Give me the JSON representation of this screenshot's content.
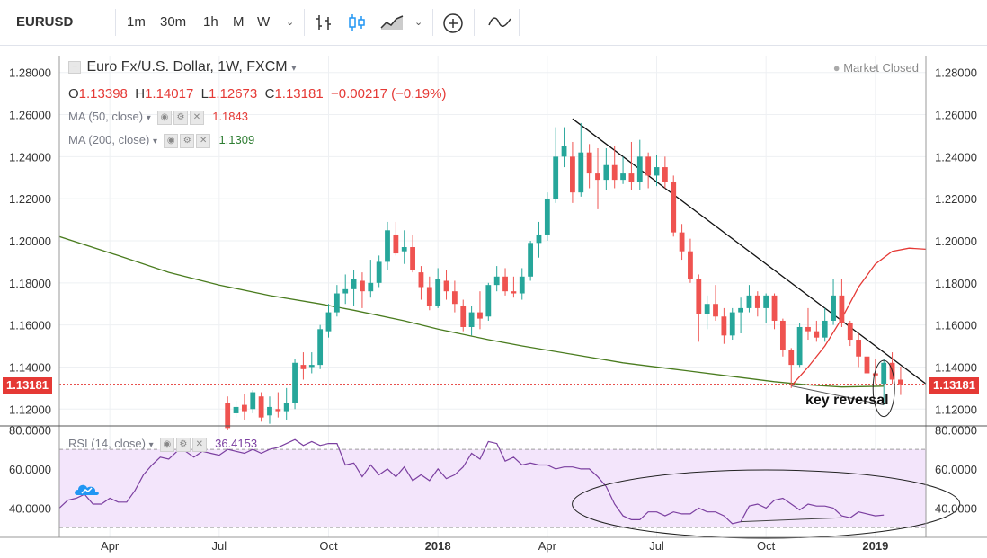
{
  "toolbar": {
    "symbol": "EURUSD",
    "timeframes": [
      "1m",
      "30m",
      "1h",
      "M",
      "W"
    ],
    "active_timeframe": "W",
    "icons": [
      "chevron-down-icon",
      "bars-chart-icon",
      "candles-chart-icon",
      "area-chart-icon",
      "chevron-down-icon",
      "compare-add-icon",
      "indicators-icon"
    ]
  },
  "legend": {
    "title": "Euro Fx/U.S. Dollar, 1W, FXCM",
    "ohlc": {
      "o_label": "O",
      "o_value": "1.13398",
      "h_label": "H",
      "h_value": "1.14017",
      "l_label": "L",
      "l_value": "1.12673",
      "c_label": "C",
      "c_value": "1.13181",
      "change": "−0.00217 (−0.19%)"
    },
    "ma50": {
      "label": "MA (50, close)",
      "value": "1.1843"
    },
    "ma200": {
      "label": "MA (200, close)",
      "value": "1.1309"
    },
    "market_status": "Market Closed",
    "last_price": "1.13181"
  },
  "annotation": "key reversal",
  "colors": {
    "up": "#26a69a",
    "down": "#ef5350",
    "ma50": "#e53935",
    "ma200": "#4a7c1f",
    "rsi_line": "#7b3fa0",
    "rsi_band": "#f3e5fb",
    "last_price": "#e53935"
  },
  "chart_data": {
    "type": "candlestick",
    "price_axis": {
      "ticks": [
        "1.28000",
        "1.26000",
        "1.24000",
        "1.22000",
        "1.20000",
        "1.18000",
        "1.16000",
        "1.14000",
        "1.12000"
      ],
      "tick_values": [
        1.28,
        1.26,
        1.24,
        1.22,
        1.2,
        1.18,
        1.16,
        1.14,
        1.12
      ],
      "range": [
        1.112,
        1.288
      ]
    },
    "time_axis": {
      "ticks": [
        "Apr",
        "Jul",
        "Oct",
        "2018",
        "Apr",
        "Jul",
        "Oct",
        "2019"
      ],
      "tick_weeks": [
        3,
        16,
        29,
        42,
        55,
        68,
        81,
        94
      ],
      "range_weeks": [
        -3,
        100
      ]
    },
    "candles": [
      {
        "w": 17,
        "o": 1.123,
        "h": 1.126,
        "l": 1.11,
        "c": 1.111
      },
      {
        "w": 18,
        "o": 1.118,
        "h": 1.124,
        "l": 1.116,
        "c": 1.121
      },
      {
        "w": 19,
        "o": 1.122,
        "h": 1.127,
        "l": 1.115,
        "c": 1.119
      },
      {
        "w": 20,
        "o": 1.12,
        "h": 1.129,
        "l": 1.118,
        "c": 1.128
      },
      {
        "w": 21,
        "o": 1.126,
        "h": 1.128,
        "l": 1.114,
        "c": 1.116
      },
      {
        "w": 22,
        "o": 1.117,
        "h": 1.126,
        "l": 1.113,
        "c": 1.121
      },
      {
        "w": 23,
        "o": 1.12,
        "h": 1.128,
        "l": 1.116,
        "c": 1.119
      },
      {
        "w": 24,
        "o": 1.119,
        "h": 1.13,
        "l": 1.115,
        "c": 1.123
      },
      {
        "w": 25,
        "o": 1.123,
        "h": 1.144,
        "l": 1.12,
        "c": 1.142
      },
      {
        "w": 26,
        "o": 1.141,
        "h": 1.147,
        "l": 1.134,
        "c": 1.139
      },
      {
        "w": 27,
        "o": 1.14,
        "h": 1.147,
        "l": 1.137,
        "c": 1.141
      },
      {
        "w": 28,
        "o": 1.141,
        "h": 1.16,
        "l": 1.139,
        "c": 1.158
      },
      {
        "w": 29,
        "o": 1.157,
        "h": 1.17,
        "l": 1.154,
        "c": 1.166
      },
      {
        "w": 30,
        "o": 1.166,
        "h": 1.179,
        "l": 1.164,
        "c": 1.175
      },
      {
        "w": 31,
        "o": 1.175,
        "h": 1.184,
        "l": 1.17,
        "c": 1.177
      },
      {
        "w": 32,
        "o": 1.177,
        "h": 1.186,
        "l": 1.169,
        "c": 1.182
      },
      {
        "w": 33,
        "o": 1.181,
        "h": 1.185,
        "l": 1.168,
        "c": 1.176
      },
      {
        "w": 34,
        "o": 1.176,
        "h": 1.191,
        "l": 1.173,
        "c": 1.18
      },
      {
        "w": 35,
        "o": 1.18,
        "h": 1.193,
        "l": 1.178,
        "c": 1.19
      },
      {
        "w": 36,
        "o": 1.19,
        "h": 1.209,
        "l": 1.186,
        "c": 1.205
      },
      {
        "w": 37,
        "o": 1.203,
        "h": 1.209,
        "l": 1.193,
        "c": 1.194
      },
      {
        "w": 38,
        "o": 1.195,
        "h": 1.205,
        "l": 1.189,
        "c": 1.197
      },
      {
        "w": 39,
        "o": 1.197,
        "h": 1.203,
        "l": 1.185,
        "c": 1.186
      },
      {
        "w": 40,
        "o": 1.185,
        "h": 1.188,
        "l": 1.172,
        "c": 1.178
      },
      {
        "w": 41,
        "o": 1.178,
        "h": 1.183,
        "l": 1.167,
        "c": 1.169
      },
      {
        "w": 42,
        "o": 1.169,
        "h": 1.187,
        "l": 1.168,
        "c": 1.182
      },
      {
        "w": 43,
        "o": 1.181,
        "h": 1.186,
        "l": 1.172,
        "c": 1.176
      },
      {
        "w": 44,
        "o": 1.176,
        "h": 1.181,
        "l": 1.166,
        "c": 1.17
      },
      {
        "w": 45,
        "o": 1.169,
        "h": 1.172,
        "l": 1.157,
        "c": 1.159
      },
      {
        "w": 46,
        "o": 1.159,
        "h": 1.169,
        "l": 1.155,
        "c": 1.166
      },
      {
        "w": 47,
        "o": 1.166,
        "h": 1.176,
        "l": 1.158,
        "c": 1.163
      },
      {
        "w": 48,
        "o": 1.164,
        "h": 1.18,
        "l": 1.162,
        "c": 1.179
      },
      {
        "w": 49,
        "o": 1.179,
        "h": 1.188,
        "l": 1.176,
        "c": 1.183
      },
      {
        "w": 50,
        "o": 1.183,
        "h": 1.187,
        "l": 1.174,
        "c": 1.176
      },
      {
        "w": 51,
        "o": 1.176,
        "h": 1.183,
        "l": 1.173,
        "c": 1.175
      },
      {
        "w": 52,
        "o": 1.175,
        "h": 1.187,
        "l": 1.172,
        "c": 1.183
      },
      {
        "w": 53,
        "o": 1.183,
        "h": 1.2,
        "l": 1.181,
        "c": 1.199
      },
      {
        "w": 54,
        "o": 1.199,
        "h": 1.209,
        "l": 1.192,
        "c": 1.203
      },
      {
        "w": 55,
        "o": 1.203,
        "h": 1.223,
        "l": 1.2,
        "c": 1.22
      },
      {
        "w": 56,
        "o": 1.22,
        "h": 1.254,
        "l": 1.218,
        "c": 1.24
      },
      {
        "w": 57,
        "o": 1.24,
        "h": 1.254,
        "l": 1.235,
        "c": 1.245
      },
      {
        "w": 58,
        "o": 1.24,
        "h": 1.247,
        "l": 1.218,
        "c": 1.223
      },
      {
        "w": 59,
        "o": 1.223,
        "h": 1.256,
        "l": 1.221,
        "c": 1.242
      },
      {
        "w": 60,
        "o": 1.242,
        "h": 1.246,
        "l": 1.225,
        "c": 1.232
      },
      {
        "w": 61,
        "o": 1.232,
        "h": 1.244,
        "l": 1.215,
        "c": 1.229
      },
      {
        "w": 62,
        "o": 1.229,
        "h": 1.244,
        "l": 1.224,
        "c": 1.236
      },
      {
        "w": 63,
        "o": 1.236,
        "h": 1.245,
        "l": 1.225,
        "c": 1.229
      },
      {
        "w": 64,
        "o": 1.229,
        "h": 1.24,
        "l": 1.227,
        "c": 1.232
      },
      {
        "w": 65,
        "o": 1.232,
        "h": 1.247,
        "l": 1.224,
        "c": 1.228
      },
      {
        "w": 66,
        "o": 1.228,
        "h": 1.248,
        "l": 1.224,
        "c": 1.24
      },
      {
        "w": 67,
        "o": 1.24,
        "h": 1.242,
        "l": 1.225,
        "c": 1.231
      },
      {
        "w": 68,
        "o": 1.231,
        "h": 1.241,
        "l": 1.226,
        "c": 1.235
      },
      {
        "w": 69,
        "o": 1.235,
        "h": 1.24,
        "l": 1.225,
        "c": 1.228
      },
      {
        "w": 70,
        "o": 1.228,
        "h": 1.231,
        "l": 1.202,
        "c": 1.204
      },
      {
        "w": 71,
        "o": 1.204,
        "h": 1.208,
        "l": 1.191,
        "c": 1.195
      },
      {
        "w": 72,
        "o": 1.195,
        "h": 1.201,
        "l": 1.18,
        "c": 1.182
      },
      {
        "w": 73,
        "o": 1.182,
        "h": 1.184,
        "l": 1.152,
        "c": 1.165
      },
      {
        "w": 74,
        "o": 1.165,
        "h": 1.174,
        "l": 1.158,
        "c": 1.17
      },
      {
        "w": 75,
        "o": 1.17,
        "h": 1.179,
        "l": 1.162,
        "c": 1.164
      },
      {
        "w": 76,
        "o": 1.164,
        "h": 1.168,
        "l": 1.151,
        "c": 1.155
      },
      {
        "w": 77,
        "o": 1.155,
        "h": 1.168,
        "l": 1.153,
        "c": 1.166
      },
      {
        "w": 78,
        "o": 1.166,
        "h": 1.173,
        "l": 1.156,
        "c": 1.168
      },
      {
        "w": 79,
        "o": 1.168,
        "h": 1.179,
        "l": 1.166,
        "c": 1.174
      },
      {
        "w": 80,
        "o": 1.174,
        "h": 1.176,
        "l": 1.164,
        "c": 1.168
      },
      {
        "w": 81,
        "o": 1.168,
        "h": 1.175,
        "l": 1.161,
        "c": 1.174
      },
      {
        "w": 82,
        "o": 1.174,
        "h": 1.175,
        "l": 1.158,
        "c": 1.162
      },
      {
        "w": 83,
        "o": 1.162,
        "h": 1.163,
        "l": 1.145,
        "c": 1.148
      },
      {
        "w": 84,
        "o": 1.148,
        "h": 1.149,
        "l": 1.13,
        "c": 1.141
      },
      {
        "w": 85,
        "o": 1.141,
        "h": 1.161,
        "l": 1.14,
        "c": 1.159
      },
      {
        "w": 86,
        "o": 1.159,
        "h": 1.168,
        "l": 1.153,
        "c": 1.157
      },
      {
        "w": 87,
        "o": 1.157,
        "h": 1.162,
        "l": 1.152,
        "c": 1.154
      },
      {
        "w": 88,
        "o": 1.154,
        "h": 1.168,
        "l": 1.152,
        "c": 1.162
      },
      {
        "w": 89,
        "o": 1.162,
        "h": 1.182,
        "l": 1.16,
        "c": 1.174
      },
      {
        "w": 90,
        "o": 1.174,
        "h": 1.182,
        "l": 1.159,
        "c": 1.161
      },
      {
        "w": 91,
        "o": 1.161,
        "h": 1.162,
        "l": 1.15,
        "c": 1.153
      },
      {
        "w": 92,
        "o": 1.153,
        "h": 1.156,
        "l": 1.14,
        "c": 1.145
      },
      {
        "w": 93,
        "o": 1.145,
        "h": 1.147,
        "l": 1.132,
        "c": 1.137
      },
      {
        "w": 94,
        "o": 1.137,
        "h": 1.144,
        "l": 1.132,
        "c": 1.136
      },
      {
        "w": 95,
        "o": 1.132,
        "h": 1.144,
        "l": 1.122,
        "c": 1.142
      },
      {
        "w": 96,
        "o": 1.142,
        "h": 1.147,
        "l": 1.132,
        "c": 1.134
      },
      {
        "w": 97,
        "o": 1.134,
        "h": 1.1402,
        "l": 1.1267,
        "c": 1.1318
      }
    ],
    "ma50": [
      [
        84,
        1.131
      ],
      [
        86,
        1.14
      ],
      [
        88,
        1.15
      ],
      [
        90,
        1.163
      ],
      [
        92,
        1.178
      ],
      [
        94,
        1.189
      ],
      [
        96,
        1.195
      ],
      [
        98,
        1.1965
      ],
      [
        100,
        1.196
      ],
      [
        102,
        1.195
      ],
      [
        104,
        1.1925
      ],
      [
        106,
        1.19
      ],
      [
        108,
        1.187
      ],
      [
        110,
        1.1843
      ]
    ],
    "ma200": [
      [
        -3,
        1.202
      ],
      [
        4,
        1.193
      ],
      [
        10,
        1.185
      ],
      [
        16,
        1.179
      ],
      [
        22,
        1.174
      ],
      [
        28,
        1.17
      ],
      [
        32,
        1.167
      ],
      [
        38,
        1.162
      ],
      [
        42,
        1.158
      ],
      [
        48,
        1.153
      ],
      [
        52,
        1.15
      ],
      [
        58,
        1.146
      ],
      [
        64,
        1.142
      ],
      [
        70,
        1.139
      ],
      [
        76,
        1.136
      ],
      [
        82,
        1.133
      ],
      [
        86,
        1.1315
      ],
      [
        90,
        1.1305
      ],
      [
        95,
        1.1309
      ]
    ],
    "trendline": [
      [
        58,
        1.258
      ],
      [
        100,
        1.132
      ]
    ],
    "support_line": [
      [
        84,
        1.131
      ],
      [
        95,
        1.122
      ]
    ],
    "rsi": {
      "label": "RSI (14, close)",
      "value": "36.4153",
      "ticks": [
        "80.0000",
        "60.0000",
        "40.0000"
      ],
      "tick_values": [
        80,
        60,
        40
      ],
      "range": [
        25,
        82
      ],
      "band": [
        30,
        70
      ],
      "points": [
        [
          -3,
          40
        ],
        [
          -2,
          44
        ],
        [
          -1,
          45
        ],
        [
          0,
          47
        ],
        [
          1,
          42
        ],
        [
          2,
          42
        ],
        [
          3,
          45
        ],
        [
          4,
          43
        ],
        [
          5,
          43
        ],
        [
          6,
          49
        ],
        [
          7,
          57
        ],
        [
          8,
          62
        ],
        [
          9,
          66
        ],
        [
          10,
          65
        ],
        [
          11,
          69
        ],
        [
          12,
          69
        ],
        [
          13,
          66
        ],
        [
          14,
          69
        ],
        [
          15,
          68
        ],
        [
          16,
          67
        ],
        [
          17,
          70
        ],
        [
          18,
          69
        ],
        [
          19,
          68
        ],
        [
          20,
          70
        ],
        [
          21,
          68
        ],
        [
          22,
          70
        ],
        [
          23,
          71
        ],
        [
          24,
          73
        ],
        [
          25,
          75
        ],
        [
          26,
          72
        ],
        [
          27,
          74
        ],
        [
          28,
          72
        ],
        [
          29,
          73
        ],
        [
          30,
          73
        ],
        [
          31,
          62
        ],
        [
          32,
          63
        ],
        [
          33,
          56
        ],
        [
          34,
          62
        ],
        [
          35,
          57
        ],
        [
          36,
          60
        ],
        [
          37,
          56
        ],
        [
          38,
          61
        ],
        [
          39,
          54
        ],
        [
          40,
          57
        ],
        [
          41,
          54
        ],
        [
          42,
          60
        ],
        [
          43,
          55
        ],
        [
          44,
          57
        ],
        [
          45,
          61
        ],
        [
          46,
          68
        ],
        [
          47,
          65
        ],
        [
          48,
          74
        ],
        [
          49,
          73
        ],
        [
          50,
          64
        ],
        [
          51,
          66
        ],
        [
          52,
          62
        ],
        [
          53,
          63
        ],
        [
          54,
          62
        ],
        [
          55,
          62
        ],
        [
          56,
          60
        ],
        [
          57,
          61
        ],
        [
          58,
          61
        ],
        [
          59,
          60
        ],
        [
          60,
          60
        ],
        [
          61,
          56
        ],
        [
          62,
          51
        ],
        [
          63,
          42
        ],
        [
          64,
          36
        ],
        [
          65,
          34
        ],
        [
          66,
          34
        ],
        [
          67,
          38
        ],
        [
          68,
          38
        ],
        [
          69,
          36
        ],
        [
          70,
          38
        ],
        [
          71,
          37
        ],
        [
          72,
          37
        ],
        [
          73,
          40
        ],
        [
          74,
          38
        ],
        [
          75,
          38
        ],
        [
          76,
          36
        ],
        [
          77,
          32
        ],
        [
          78,
          33
        ],
        [
          79,
          41
        ],
        [
          80,
          42
        ],
        [
          81,
          40
        ],
        [
          82,
          44
        ],
        [
          83,
          45
        ],
        [
          84,
          42
        ],
        [
          85,
          39
        ],
        [
          86,
          42
        ],
        [
          87,
          41
        ],
        [
          88,
          41
        ],
        [
          89,
          40
        ],
        [
          90,
          36
        ],
        [
          91,
          35
        ],
        [
          92,
          38
        ],
        [
          93,
          37
        ],
        [
          94,
          36
        ],
        [
          95,
          36.4
        ]
      ],
      "divergence_line": [
        [
          78,
          33
        ],
        [
          90,
          35
        ]
      ]
    }
  }
}
